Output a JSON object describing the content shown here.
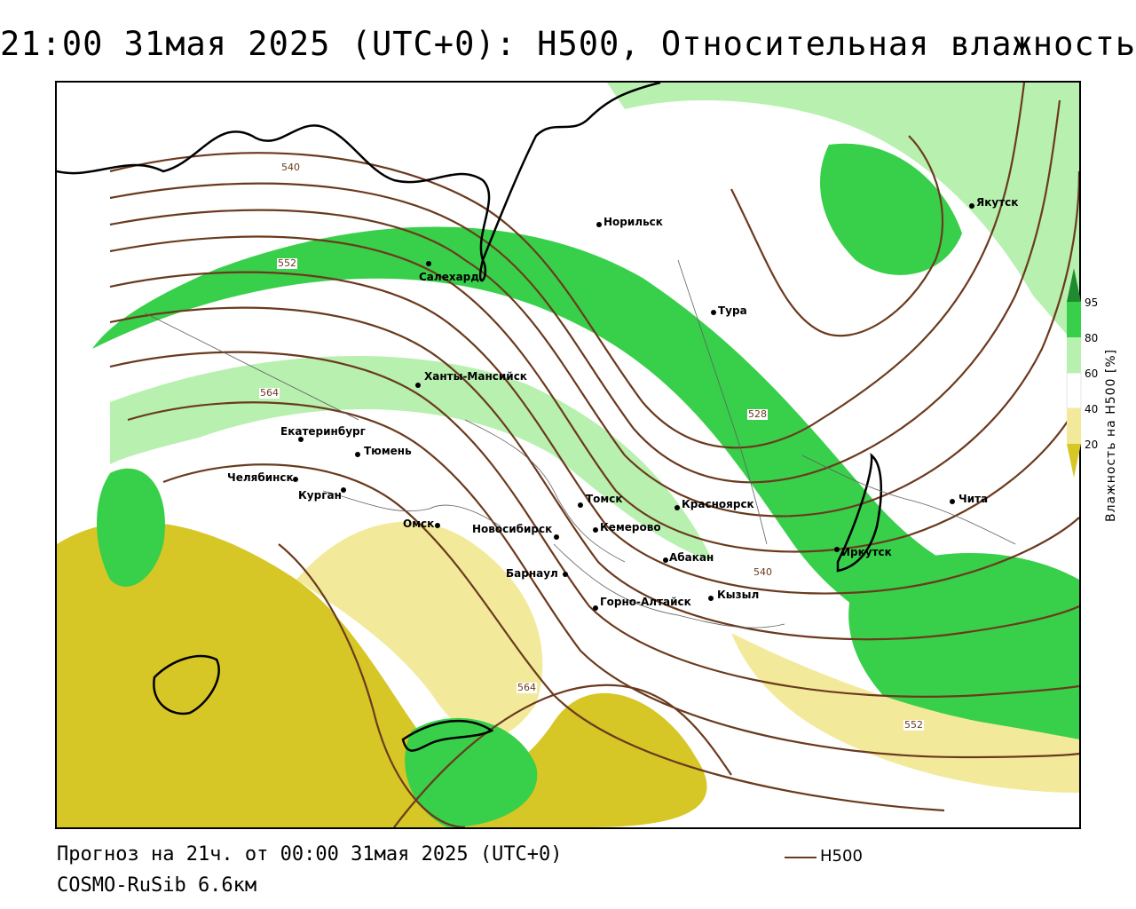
{
  "title": "21:00 31мая 2025 (UTC+0): H500, Относительная влажность",
  "footer": {
    "forecast": "Прогноз на 21ч. от 00:00 31мая 2025 (UTC+0)",
    "model": "COSMO-RuSib 6.6км",
    "legend_label": "H500"
  },
  "colorbar": {
    "title": "Влажность на H500 [%]",
    "ticks": [
      "95",
      "80",
      "60",
      "40",
      "20"
    ],
    "colors": [
      "#1e8c2e",
      "#38cf4a",
      "#b8f0b0",
      "#ffffff",
      "#f2ea9a",
      "#d6c626"
    ]
  },
  "colors": {
    "contour": "#6b3a1e",
    "coast": "#000000",
    "border": "#606060"
  },
  "cities": [
    {
      "name": "Норильск"
    },
    {
      "name": "Якутск"
    },
    {
      "name": "Салехард"
    },
    {
      "name": "Тура"
    },
    {
      "name": "Ханты-Мансийск"
    },
    {
      "name": "Екатеринбург"
    },
    {
      "name": "Тюмень"
    },
    {
      "name": "Челябинск"
    },
    {
      "name": "Курган"
    },
    {
      "name": "Томск"
    },
    {
      "name": "Красноярск"
    },
    {
      "name": "Чита"
    },
    {
      "name": "Омск"
    },
    {
      "name": "Новосибирск"
    },
    {
      "name": "Кемерово"
    },
    {
      "name": "Абакан"
    },
    {
      "name": "Иркутск"
    },
    {
      "name": "Барнаул"
    },
    {
      "name": "Горно-Алтайск"
    },
    {
      "name": "Кызыл"
    }
  ],
  "contour_labels": [
    "540",
    "552",
    "564",
    "528",
    "540",
    "564",
    "552"
  ]
}
